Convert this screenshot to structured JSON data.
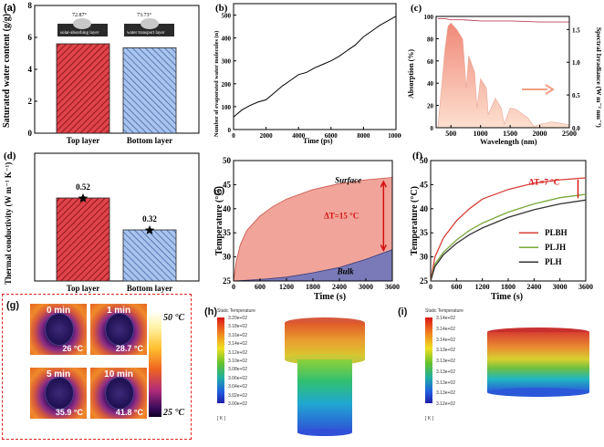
{
  "panels": {
    "a": {
      "label": "(a)",
      "ylabel": "Saturated water content (g/g)",
      "categories": [
        "Top layer",
        "Bottom layer"
      ],
      "angle_labels": [
        "72.87°",
        "73.73°"
      ],
      "layer_labels": [
        "solar-absorbing layer",
        "water transport layer"
      ],
      "yticks": [
        "0",
        "2",
        "4",
        "6",
        "8"
      ]
    },
    "b": {
      "label": "(b)",
      "xlabel": "Time (ps)",
      "ylabel": "Number of evaporated water molecules (n)",
      "xticks": [
        "0",
        "2000",
        "4000",
        "6000",
        "8000",
        "10000"
      ],
      "yticks": [
        "0",
        "100",
        "200",
        "300",
        "400",
        "500"
      ]
    },
    "c": {
      "label": "(c)",
      "xlabel": "Wavelength (nm)",
      "ylabel_left": "Absorption (%)",
      "ylabel_right": "Spectral Irradiance (W m⁻² nm⁻¹)",
      "xticks": [
        "500",
        "1000",
        "1500",
        "2000",
        "2500"
      ],
      "yticks_left": [
        "0",
        "20",
        "40",
        "60",
        "80",
        "100"
      ],
      "yticks_right": [
        "0.0",
        "0.5",
        "1.0",
        "1.5"
      ]
    },
    "d": {
      "label": "(d)",
      "ylabel": "Thermal conductivity (W m⁻¹ K⁻¹)",
      "categories": [
        "Top layer",
        "Bottom layer"
      ],
      "value_labels": [
        "0.52",
        "0.32"
      ]
    },
    "e": {
      "label": "(e)",
      "xlabel": "Time (s)",
      "ylabel": "Temperature (°C)",
      "xticks": [
        "0",
        "600",
        "1200",
        "1800",
        "2400",
        "3000",
        "3600"
      ],
      "yticks": [
        "25",
        "30",
        "35",
        "40",
        "45",
        "50"
      ],
      "surface_label": "Surface",
      "bulk_label": "Bulk",
      "delta_label": "ΔT=15 °C"
    },
    "f": {
      "label": "(f)",
      "xlabel": "Time (s)",
      "ylabel": "Temperature (°C)",
      "xticks": [
        "0",
        "600",
        "1200",
        "1800",
        "2400",
        "3000",
        "3600"
      ],
      "yticks": [
        "25",
        "30",
        "35",
        "40",
        "45",
        "50"
      ],
      "delta_label": "ΔT=7 °C",
      "legend": [
        "PLBH",
        "PLJH",
        "PLH"
      ]
    },
    "g": {
      "label": "(g)",
      "times": [
        "0 min",
        "1 min",
        "5 min",
        "10 min"
      ],
      "temps": [
        "26 °C",
        "28.7 °C",
        "35.9 °C",
        "41.8 °C"
      ],
      "scale_max": "50 °C",
      "scale_min": "25 °C"
    },
    "h": {
      "label": "(h)",
      "legend_title": "Static Temperature",
      "ticks": [
        "3.20e+02",
        "3.18e+02",
        "3.16e+02",
        "3.14e+02",
        "3.12e+02",
        "3.10e+02",
        "3.08e+02",
        "3.06e+02",
        "3.04e+02",
        "3.02e+02",
        "3.00e+02"
      ],
      "unit": "[ K ]"
    },
    "i": {
      "label": "(i)",
      "legend_title": "Static Temperature",
      "ticks": [
        "3.14e+02",
        "3.14e+02",
        "3.14e+02",
        "3.13e+02",
        "3.13e+02",
        "3.13e+02",
        "3.13e+02",
        "3.13e+02",
        "3.12e+02"
      ],
      "unit": "[ K ]"
    }
  },
  "chart_data": [
    {
      "id": "a",
      "type": "bar",
      "categories": [
        "Top layer",
        "Bottom layer"
      ],
      "values": [
        5.6,
        5.35
      ],
      "ylim": [
        0,
        8
      ],
      "ylabel": "Saturated water content (g/g)"
    },
    {
      "id": "b",
      "type": "line",
      "x": [
        0,
        500,
        1000,
        1500,
        2000,
        2500,
        3000,
        3500,
        4000,
        4500,
        5000,
        5500,
        6000,
        6500,
        7000,
        7500,
        8000,
        8500,
        9000,
        9500,
        10000
      ],
      "y": [
        55,
        85,
        105,
        120,
        130,
        160,
        190,
        215,
        240,
        250,
        270,
        285,
        300,
        320,
        345,
        370,
        405,
        430,
        455,
        475,
        495
      ],
      "xlim": [
        0,
        10000
      ],
      "ylim": [
        0,
        550
      ],
      "xlabel": "Time (ps)",
      "ylabel": "Number of evaporated water molecules (n)"
    },
    {
      "id": "c",
      "type": "area",
      "series": [
        {
          "name": "Absorption",
          "axis": "left",
          "x": [
            280,
            400,
            500,
            700,
            1000,
            1500,
            2000,
            2500
          ],
          "y": [
            98,
            98,
            97,
            97,
            96,
            96,
            95,
            95
          ]
        },
        {
          "name": "Spectral Irradiance",
          "axis": "right",
          "x": [
            280,
            350,
            400,
            450,
            500,
            550,
            600,
            700,
            760,
            800,
            900,
            940,
            1000,
            1100,
            1130,
            1250,
            1350,
            1400,
            1500,
            1600,
            1800,
            1900,
            2000,
            2200,
            2400,
            2500
          ],
          "y": [
            0.0,
            0.7,
            1.2,
            1.55,
            1.6,
            1.55,
            1.5,
            1.35,
            0.6,
            1.1,
            0.85,
            0.3,
            0.75,
            0.6,
            0.2,
            0.45,
            0.3,
            0.05,
            0.3,
            0.28,
            0.15,
            0.02,
            0.05,
            0.09,
            0.06,
            0.04
          ]
        }
      ],
      "xlim": [
        250,
        2500
      ],
      "ylim_left": [
        0,
        100
      ],
      "ylim_right": [
        0,
        1.7
      ],
      "xlabel": "Wavelength (nm)"
    },
    {
      "id": "d",
      "type": "bar",
      "categories": [
        "Top layer",
        "Bottom layer"
      ],
      "values": [
        0.52,
        0.32
      ],
      "ylim": [
        0,
        0.8
      ]
    },
    {
      "id": "e",
      "type": "area",
      "series": [
        {
          "name": "Surface",
          "x": [
            0,
            60,
            150,
            300,
            600,
            900,
            1200,
            1800,
            2400,
            3000,
            3600
          ],
          "y": [
            25,
            29,
            32.5,
            35.5,
            38.5,
            40.5,
            42,
            44,
            45.2,
            46,
            46.5
          ]
        },
        {
          "name": "Bulk",
          "x": [
            0,
            600,
            1200,
            1800,
            2400,
            3000,
            3600
          ],
          "y": [
            25,
            25.3,
            25.8,
            26.7,
            27.8,
            29.5,
            31.5
          ]
        }
      ],
      "xlim": [
        0,
        3600
      ],
      "ylim": [
        25,
        50
      ],
      "xlabel": "Time (s)",
      "ylabel": "Temperature (°C)"
    },
    {
      "id": "f",
      "type": "line",
      "series": [
        {
          "name": "PLBH",
          "color": "#d9413a",
          "x": [
            0,
            100,
            300,
            600,
            900,
            1200,
            1800,
            2400,
            3000,
            3600
          ],
          "y": [
            25,
            30,
            34,
            37.5,
            40,
            42,
            44,
            45.3,
            46,
            46.4
          ]
        },
        {
          "name": "PLJH",
          "color": "#7aa83a",
          "x": [
            0,
            100,
            300,
            600,
            900,
            1200,
            1800,
            2400,
            3000,
            3600
          ],
          "y": [
            25,
            28.5,
            31,
            33.5,
            35.5,
            37,
            39.3,
            41,
            42.3,
            43
          ]
        },
        {
          "name": "PLH",
          "color": "#333333",
          "x": [
            0,
            100,
            300,
            600,
            900,
            1200,
            1800,
            2400,
            3000,
            3600
          ],
          "y": [
            25,
            28,
            30.5,
            32.8,
            34.6,
            36,
            38.2,
            39.8,
            41,
            41.8
          ]
        }
      ],
      "xlim": [
        0,
        3600
      ],
      "ylim": [
        25,
        50
      ],
      "xlabel": "Time (s)",
      "ylabel": "Temperature (°C)"
    }
  ]
}
